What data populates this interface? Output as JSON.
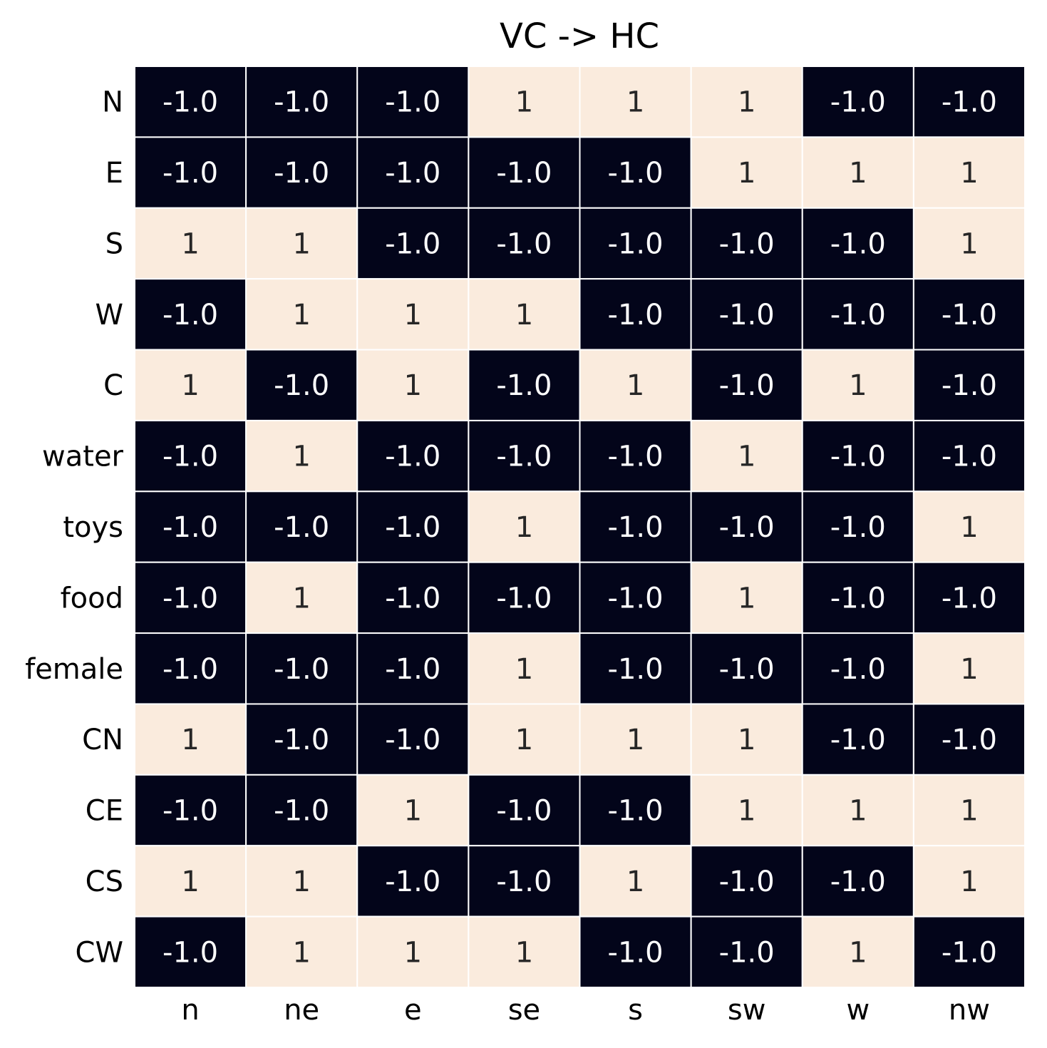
{
  "chart_data": {
    "type": "heatmap",
    "title": "VC -> HC",
    "xlabel": "",
    "ylabel": "",
    "x_categories": [
      "n",
      "ne",
      "e",
      "se",
      "s",
      "sw",
      "w",
      "nw"
    ],
    "y_categories": [
      "N",
      "E",
      "S",
      "W",
      "C",
      "water",
      "toys",
      "food",
      "female",
      "CN",
      "CE",
      "CS",
      "CW"
    ],
    "values": [
      [
        -1,
        -1,
        -1,
        1,
        1,
        1,
        -1,
        -1
      ],
      [
        -1,
        -1,
        -1,
        -1,
        -1,
        1,
        1,
        1
      ],
      [
        1,
        1,
        -1,
        -1,
        -1,
        -1,
        -1,
        1
      ],
      [
        -1,
        1,
        1,
        1,
        -1,
        -1,
        -1,
        -1
      ],
      [
        1,
        -1,
        1,
        -1,
        1,
        -1,
        1,
        -1
      ],
      [
        -1,
        1,
        -1,
        -1,
        -1,
        1,
        -1,
        -1
      ],
      [
        -1,
        -1,
        -1,
        1,
        -1,
        -1,
        -1,
        1
      ],
      [
        -1,
        1,
        -1,
        -1,
        -1,
        1,
        -1,
        -1
      ],
      [
        -1,
        -1,
        -1,
        1,
        -1,
        -1,
        -1,
        1
      ],
      [
        1,
        -1,
        -1,
        1,
        1,
        1,
        -1,
        -1
      ],
      [
        -1,
        -1,
        1,
        -1,
        -1,
        1,
        1,
        1
      ],
      [
        1,
        1,
        -1,
        -1,
        1,
        -1,
        -1,
        1
      ],
      [
        -1,
        1,
        1,
        1,
        -1,
        -1,
        1,
        -1
      ]
    ],
    "value_labels": {
      "negative": "-1.0",
      "positive": "1"
    },
    "colors": {
      "negative": "#03051a",
      "positive": "#faebdd",
      "text_on_negative": "#ffffff",
      "text_on_positive": "#262626",
      "grid": "#ffffff"
    },
    "vmin": -1,
    "vmax": 1,
    "colorbar": false,
    "grid": true
  }
}
